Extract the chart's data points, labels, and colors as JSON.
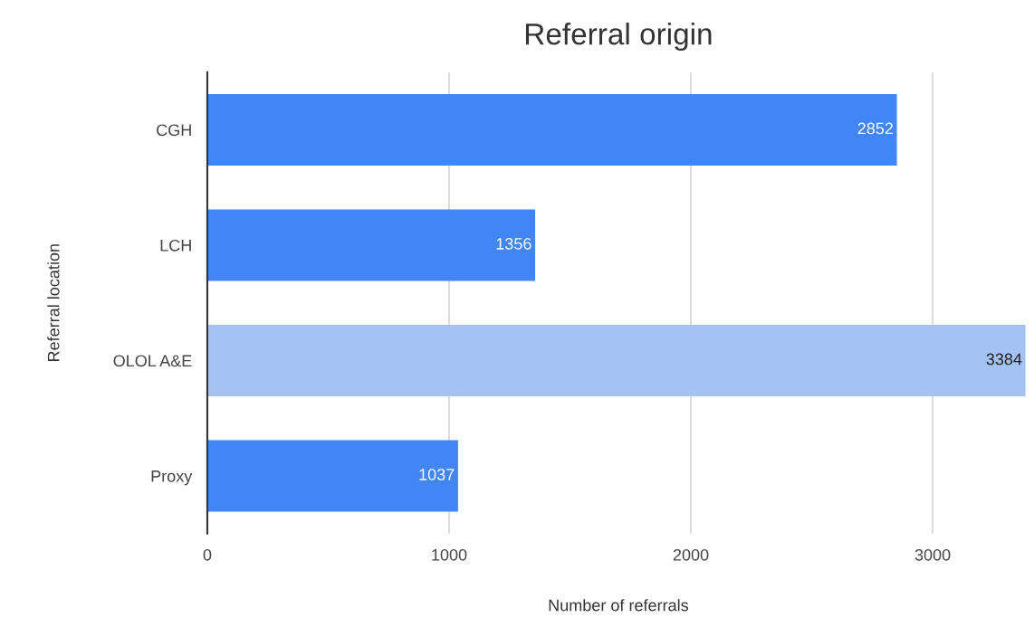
{
  "chart_data": {
    "type": "bar",
    "orientation": "horizontal",
    "title": "Referral origin",
    "xlabel": "Number of referrals",
    "ylabel": "Referral location",
    "categories": [
      "CGH",
      "LCH",
      "OLOL A&E",
      "Proxy"
    ],
    "values": [
      2852,
      1356,
      3384,
      1037
    ],
    "colors": [
      "#4285f4",
      "#4285f4",
      "#a4c2f4",
      "#4285f4"
    ],
    "xlim": [
      0,
      3400
    ],
    "xticks": [
      0,
      1000,
      2000,
      3000
    ],
    "grid": "x",
    "data_labels": true
  }
}
